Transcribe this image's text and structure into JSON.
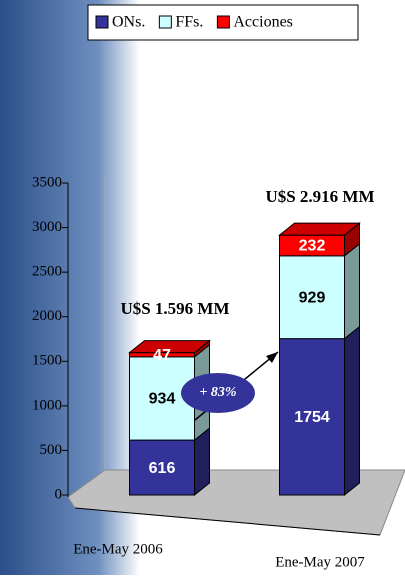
{
  "chart_data": {
    "type": "bar3d_stacked",
    "categories": [
      "Ene-May 2006",
      "Ene-May 2007"
    ],
    "series": [
      {
        "name": "ONs.",
        "color": "#333399",
        "values": [
          616,
          1754
        ]
      },
      {
        "name": "FFs.",
        "color": "#ccffff",
        "values": [
          934,
          929
        ]
      },
      {
        "name": "Acciones",
        "color": "#ff0000",
        "values": [
          47,
          232
        ]
      }
    ],
    "ylim": [
      0,
      3500
    ],
    "yticks": [
      0,
      500,
      1000,
      1500,
      2000,
      2500,
      3000,
      3500
    ],
    "annotations": [
      "U$S 1.596 MM",
      "U$S 2.916 MM",
      "+ 83%"
    ],
    "legend": "top"
  }
}
